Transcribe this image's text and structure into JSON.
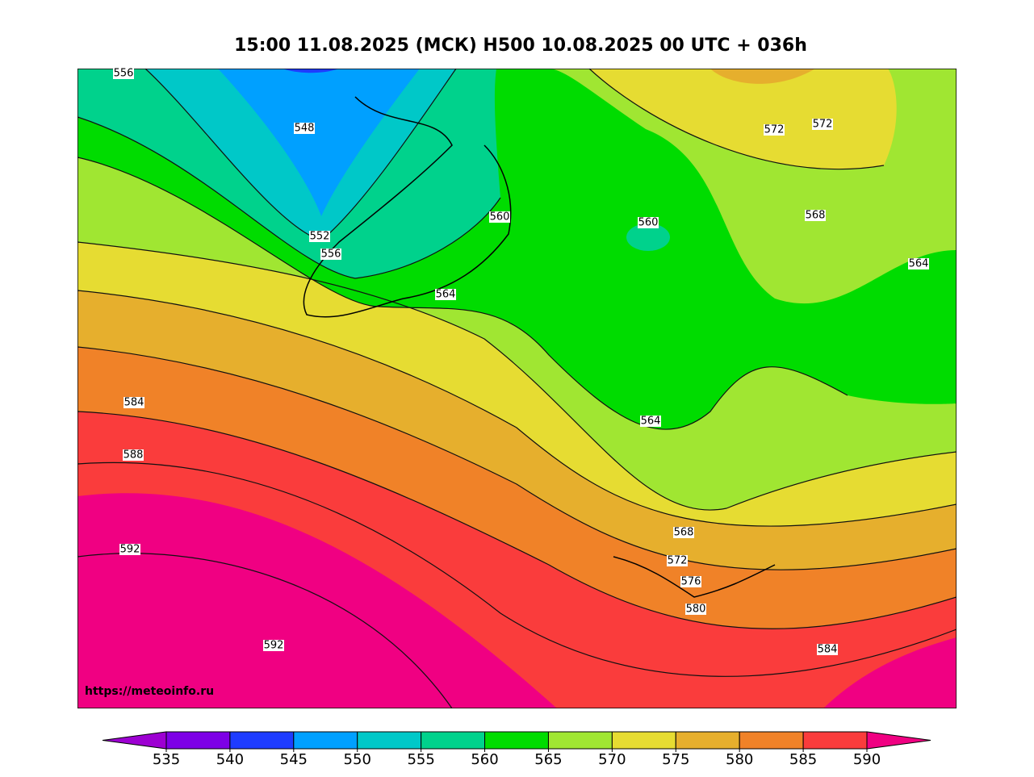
{
  "title": "15:00 11.08.2025 (МСК) H500  10.08.2025 00 UTC + 036h",
  "watermark": "https://meteoinfo.ru",
  "contour_labels": [
    "556",
    "548",
    "552",
    "556",
    "560",
    "560",
    "564",
    "572",
    "572",
    "568",
    "564",
    "584",
    "588",
    "592",
    "592",
    "564",
    "568",
    "572",
    "576",
    "580",
    "584"
  ],
  "colorbar": {
    "ticks": [
      535,
      540,
      545,
      550,
      555,
      560,
      565,
      570,
      575,
      580,
      585,
      590
    ],
    "colors": [
      "#9d00d2",
      "#7d00e6",
      "#1e3cff",
      "#00a0ff",
      "#00c8c8",
      "#00d28c",
      "#00dc00",
      "#a0e632",
      "#e6dc32",
      "#e6af2d",
      "#f08228",
      "#fa3c3c",
      "#f00082"
    ]
  }
}
